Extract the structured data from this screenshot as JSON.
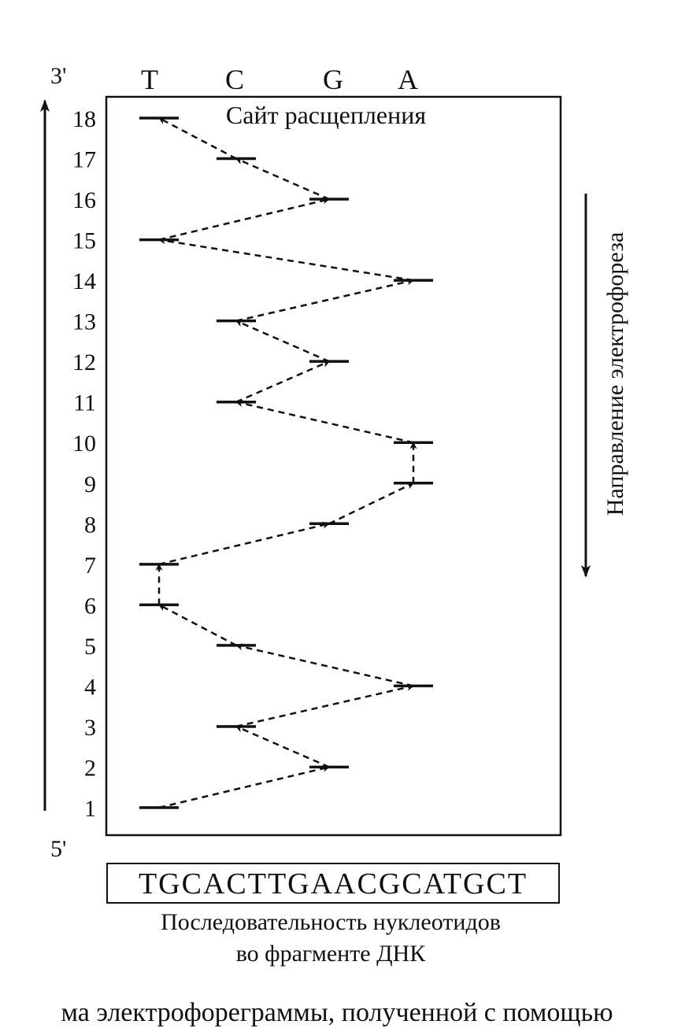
{
  "lanes": [
    {
      "base": "T"
    },
    {
      "base": "C"
    },
    {
      "base": "G"
    },
    {
      "base": "A"
    }
  ],
  "label_3prime": "3'",
  "label_5prime": "5'",
  "cleavage_site_label": "Сайт расщепления",
  "electrophoresis_direction_label": "Направление электрофореза",
  "bands": [
    {
      "position": 1,
      "base": "T"
    },
    {
      "position": 2,
      "base": "G"
    },
    {
      "position": 3,
      "base": "C"
    },
    {
      "position": 4,
      "base": "A"
    },
    {
      "position": 5,
      "base": "C"
    },
    {
      "position": 6,
      "base": "T"
    },
    {
      "position": 7,
      "base": "T"
    },
    {
      "position": 8,
      "base": "G"
    },
    {
      "position": 9,
      "base": "A"
    },
    {
      "position": 10,
      "base": "A"
    },
    {
      "position": 11,
      "base": "C"
    },
    {
      "position": 12,
      "base": "G"
    },
    {
      "position": 13,
      "base": "C"
    },
    {
      "position": 14,
      "base": "A"
    },
    {
      "position": 15,
      "base": "T"
    },
    {
      "position": 16,
      "base": "G"
    },
    {
      "position": 17,
      "base": "C"
    },
    {
      "position": 18,
      "base": "T"
    }
  ],
  "sequence": "TGCACTTGAACGCATGCT",
  "sequence_caption_line1": "Последовательность нуклеотидов",
  "sequence_caption_line2": "во фрагменте ДНК",
  "bottom_caption": "ма электрофореграммы, полученной с помощью"
}
